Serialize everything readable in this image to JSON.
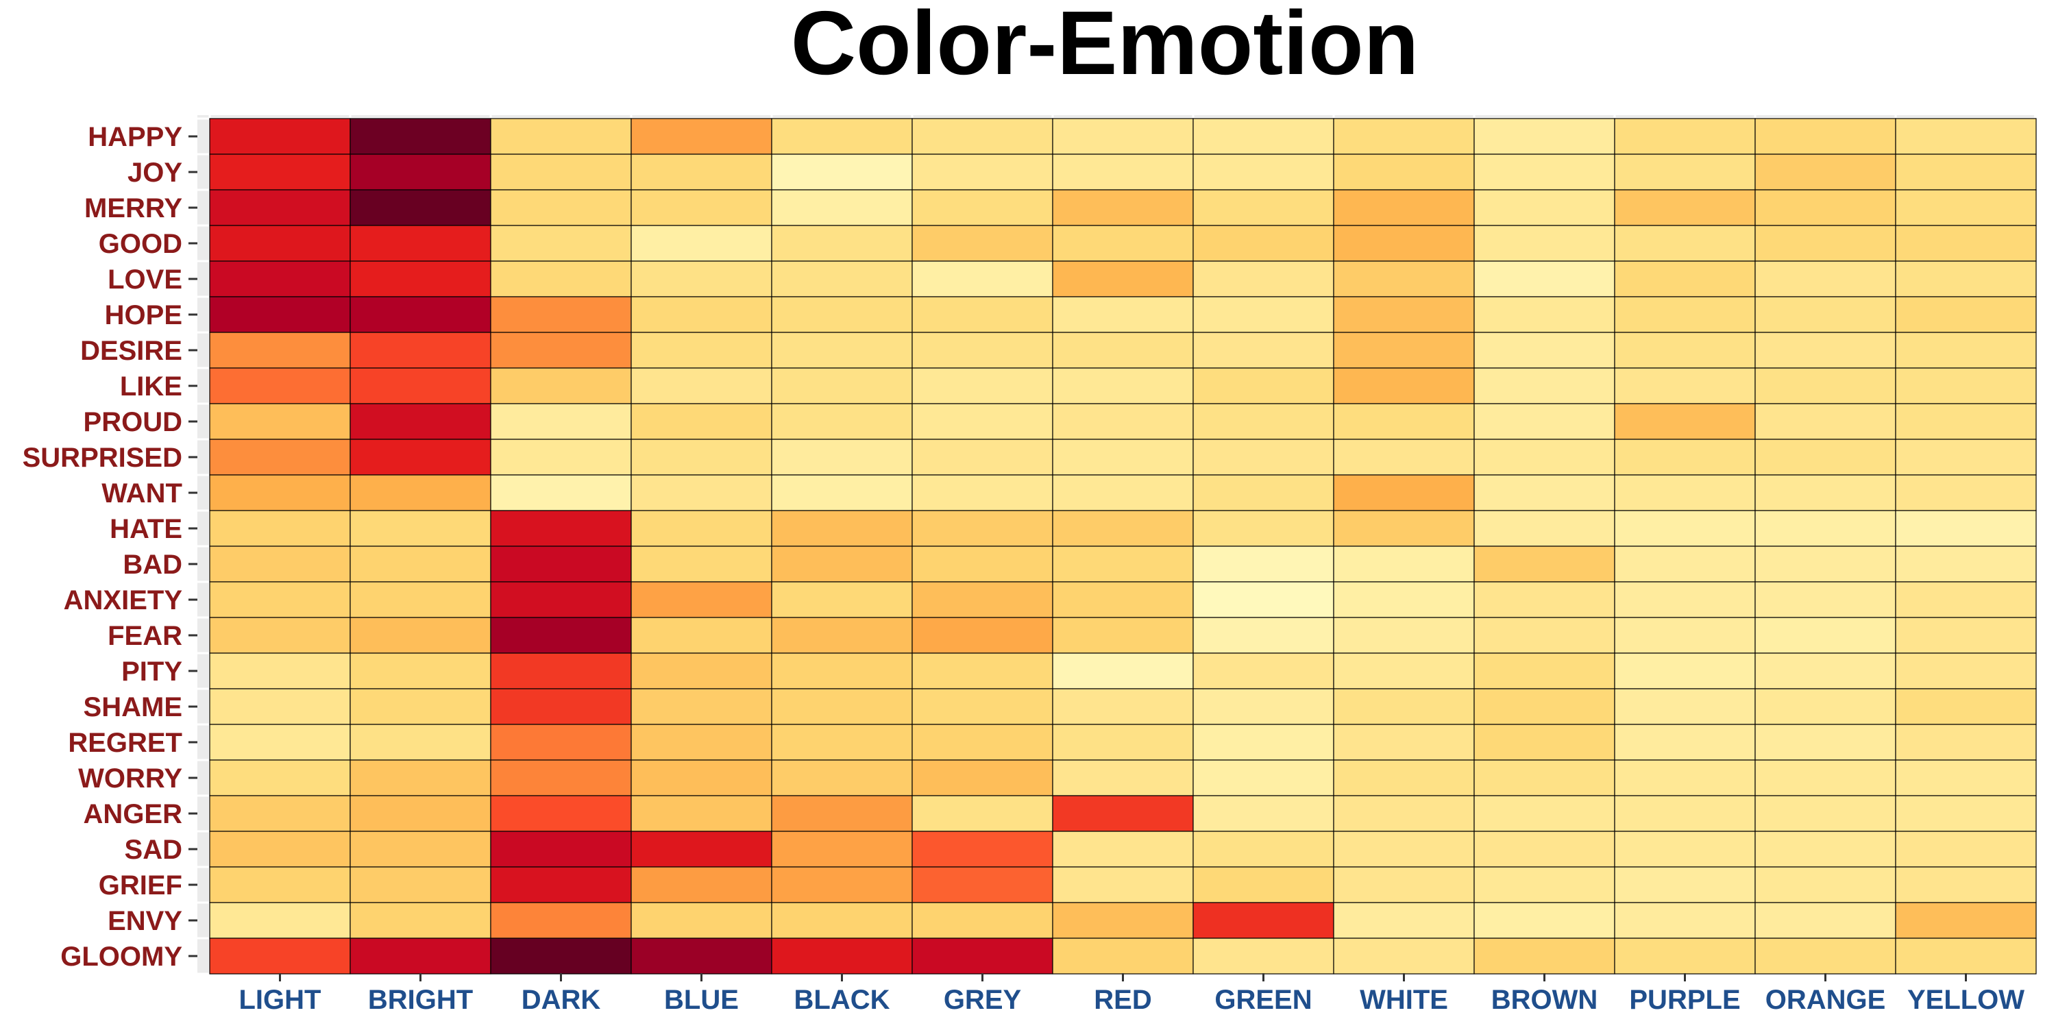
{
  "chart_data": {
    "type": "heatmap",
    "title": "Color-Emotion",
    "xlabel": "",
    "ylabel": "",
    "legend": "none",
    "grid": true,
    "scale": "0 = pale yellow, 1 = dark red",
    "colors": {
      "title": "#000000",
      "row_labels": "#8B1A1A",
      "col_labels": "#1F4E8C",
      "panel": "#EBEBEB",
      "cell_border": "#000000",
      "scale": [
        "#FFFFCC",
        "#FFEDA0",
        "#FED976",
        "#FEB24C",
        "#FD8D3C",
        "#FC4E2A",
        "#E31A1C",
        "#BD0026",
        "#800026",
        "#660022"
      ]
    },
    "columns": [
      "LIGHT",
      "BRIGHT",
      "DARK",
      "BLUE",
      "BLACK",
      "GREY",
      "RED",
      "GREEN",
      "WHITE",
      "BROWN",
      "PURPLE",
      "ORANGE",
      "YELLOW"
    ],
    "rows": [
      "HAPPY",
      "JOY",
      "MERRY",
      "GOOD",
      "LOVE",
      "HOPE",
      "DESIRE",
      "LIKE",
      "PROUD",
      "SURPRISED",
      "WANT",
      "HATE",
      "BAD",
      "ANXIETY",
      "FEAR",
      "PITY",
      "SHAME",
      "REGRET",
      "WORRY",
      "ANGER",
      "SAD",
      "GRIEF",
      "ENVY",
      "GLOOMY"
    ],
    "values": [
      [
        0.68,
        0.97,
        0.22,
        0.38,
        0.2,
        0.18,
        0.15,
        0.14,
        0.2,
        0.12,
        0.2,
        0.22,
        0.18
      ],
      [
        0.66,
        0.82,
        0.22,
        0.22,
        0.06,
        0.15,
        0.14,
        0.14,
        0.22,
        0.13,
        0.18,
        0.26,
        0.2
      ],
      [
        0.72,
        0.99,
        0.22,
        0.22,
        0.1,
        0.2,
        0.3,
        0.2,
        0.32,
        0.14,
        0.28,
        0.24,
        0.2
      ],
      [
        0.68,
        0.66,
        0.2,
        0.1,
        0.18,
        0.26,
        0.22,
        0.24,
        0.32,
        0.14,
        0.18,
        0.22,
        0.22
      ],
      [
        0.74,
        0.66,
        0.22,
        0.18,
        0.18,
        0.1,
        0.32,
        0.16,
        0.26,
        0.08,
        0.22,
        0.16,
        0.18
      ],
      [
        0.8,
        0.8,
        0.44,
        0.22,
        0.2,
        0.2,
        0.14,
        0.14,
        0.3,
        0.14,
        0.2,
        0.18,
        0.22
      ],
      [
        0.44,
        0.58,
        0.44,
        0.2,
        0.18,
        0.18,
        0.18,
        0.16,
        0.3,
        0.12,
        0.18,
        0.16,
        0.18
      ],
      [
        0.5,
        0.58,
        0.26,
        0.16,
        0.18,
        0.14,
        0.14,
        0.2,
        0.32,
        0.12,
        0.16,
        0.18,
        0.18
      ],
      [
        0.3,
        0.72,
        0.12,
        0.22,
        0.18,
        0.14,
        0.16,
        0.18,
        0.2,
        0.12,
        0.3,
        0.16,
        0.18
      ],
      [
        0.44,
        0.66,
        0.14,
        0.18,
        0.12,
        0.16,
        0.14,
        0.16,
        0.16,
        0.14,
        0.18,
        0.18,
        0.16
      ],
      [
        0.34,
        0.34,
        0.08,
        0.16,
        0.1,
        0.14,
        0.14,
        0.18,
        0.34,
        0.12,
        0.14,
        0.14,
        0.16
      ],
      [
        0.24,
        0.22,
        0.7,
        0.22,
        0.3,
        0.26,
        0.26,
        0.18,
        0.26,
        0.12,
        0.1,
        0.1,
        0.08
      ],
      [
        0.26,
        0.24,
        0.74,
        0.22,
        0.3,
        0.24,
        0.22,
        0.06,
        0.1,
        0.26,
        0.12,
        0.12,
        0.12
      ],
      [
        0.24,
        0.24,
        0.72,
        0.38,
        0.22,
        0.3,
        0.24,
        0.04,
        0.1,
        0.16,
        0.12,
        0.12,
        0.16
      ],
      [
        0.26,
        0.3,
        0.82,
        0.24,
        0.3,
        0.36,
        0.24,
        0.08,
        0.12,
        0.16,
        0.12,
        0.1,
        0.16
      ],
      [
        0.16,
        0.22,
        0.6,
        0.28,
        0.24,
        0.22,
        0.06,
        0.16,
        0.14,
        0.2,
        0.1,
        0.12,
        0.16
      ],
      [
        0.16,
        0.22,
        0.6,
        0.26,
        0.24,
        0.22,
        0.16,
        0.12,
        0.18,
        0.22,
        0.12,
        0.14,
        0.2
      ],
      [
        0.14,
        0.18,
        0.48,
        0.28,
        0.24,
        0.24,
        0.18,
        0.1,
        0.16,
        0.22,
        0.12,
        0.12,
        0.16
      ],
      [
        0.2,
        0.28,
        0.46,
        0.3,
        0.26,
        0.3,
        0.16,
        0.1,
        0.18,
        0.18,
        0.14,
        0.14,
        0.14
      ],
      [
        0.26,
        0.3,
        0.56,
        0.28,
        0.4,
        0.18,
        0.6,
        0.12,
        0.16,
        0.14,
        0.14,
        0.14,
        0.14
      ],
      [
        0.28,
        0.28,
        0.74,
        0.68,
        0.38,
        0.54,
        0.16,
        0.18,
        0.16,
        0.16,
        0.14,
        0.14,
        0.16
      ],
      [
        0.24,
        0.26,
        0.7,
        0.4,
        0.38,
        0.52,
        0.16,
        0.22,
        0.16,
        0.14,
        0.12,
        0.14,
        0.16
      ],
      [
        0.14,
        0.24,
        0.46,
        0.24,
        0.24,
        0.24,
        0.3,
        0.62,
        0.12,
        0.1,
        0.12,
        0.12,
        0.3
      ],
      [
        0.58,
        0.74,
        1.0,
        0.84,
        0.68,
        0.74,
        0.24,
        0.16,
        0.16,
        0.24,
        0.2,
        0.2,
        0.2
      ]
    ]
  }
}
